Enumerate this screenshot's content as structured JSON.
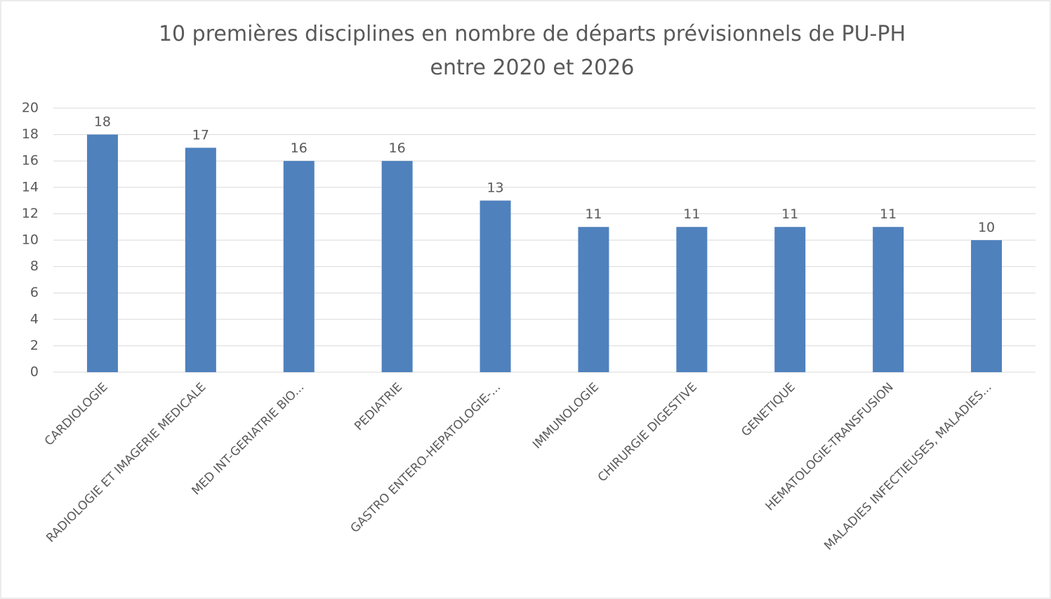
{
  "chart_data": {
    "type": "bar",
    "title": [
      "10 premières disciplines en nombre de départs prévisionnels de PU-PH",
      "entre 2020 et 2026"
    ],
    "categories": [
      "CARDIOLOGIE",
      "RADIOLOGIE ET IMAGERIE MEDICALE",
      "MED INT-GERIATRIE BIO...",
      "PEDIATRIE",
      "GASTRO ENTERO-HEPATOLOGIE-...",
      "IMMUNOLOGIE",
      "CHIRURGIE DIGESTIVE",
      "GENETIQUE",
      "HEMATOLOGIE-TRANSFUSION",
      "MALADIES INFECTIEUSES, MALADIES..."
    ],
    "values": [
      18,
      17,
      16,
      16,
      13,
      11,
      11,
      11,
      11,
      10
    ],
    "color": "#4f81bd",
    "ylim": [
      0,
      20
    ],
    "yticks": [
      0,
      2,
      4,
      6,
      8,
      10,
      12,
      14,
      16,
      18,
      20
    ],
    "grid": true
  }
}
